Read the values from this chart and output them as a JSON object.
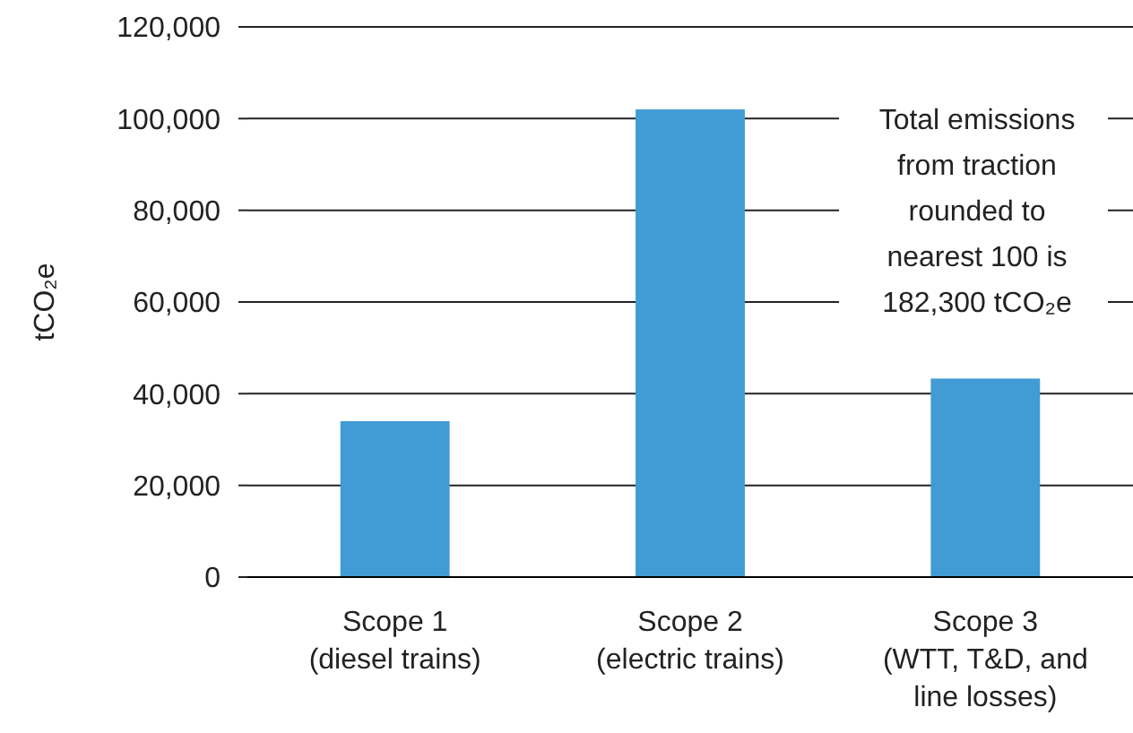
{
  "chart_data": {
    "type": "bar",
    "ylabel": "tCO₂e",
    "categories": [
      "Scope 1\n(diesel trains)",
      "Scope 2\n(electric trains)",
      "Scope 3\n(WTT, T&D, and\nline losses)"
    ],
    "values": [
      34000,
      102000,
      43300
    ],
    "color": "#419bd4",
    "ylim": [
      0,
      120000
    ],
    "yticks": [
      {
        "value": 0,
        "label": "0"
      },
      {
        "value": 20000,
        "label": "20,000"
      },
      {
        "value": 40000,
        "label": "40,000"
      },
      {
        "value": 60000,
        "label": "60,000"
      },
      {
        "value": 80000,
        "label": "80,000"
      },
      {
        "value": 100000,
        "label": "100,000"
      },
      {
        "value": 120000,
        "label": "120,000"
      }
    ],
    "grid": "y",
    "annotations": [
      "Total emissions\nfrom traction\nrounded to\nnearest 100 is\n182,300 tCO₂e"
    ]
  }
}
